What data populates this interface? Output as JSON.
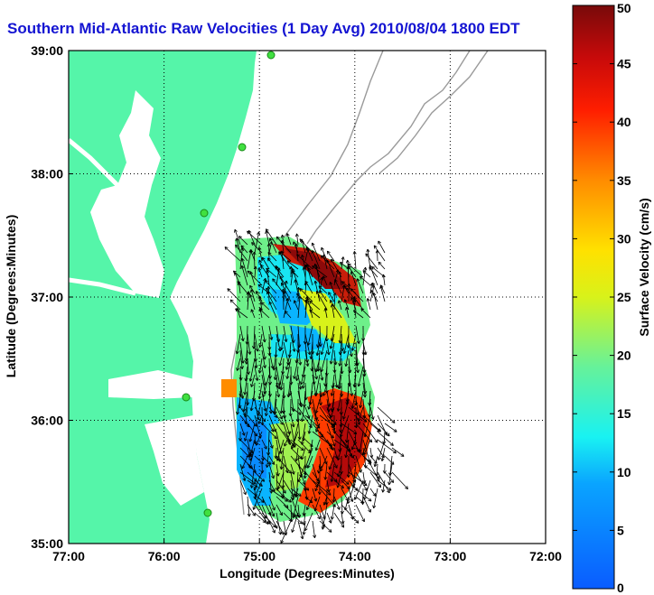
{
  "title": "Southern Mid-Atlantic Raw Velocities (1 Day Avg) 2010/08/04 1800 EDT",
  "map": {
    "xlabel": "Longitude (Degrees:Minutes)",
    "ylabel": "Latitude (Degrees:Minutes)",
    "lon_range": [
      -77,
      -72
    ],
    "lat_range": [
      35,
      39
    ],
    "x_ticks": [
      {
        "value": -77,
        "label": "77:00"
      },
      {
        "value": -76,
        "label": "76:00"
      },
      {
        "value": -75,
        "label": "75:00"
      },
      {
        "value": -74,
        "label": "74:00"
      },
      {
        "value": -73,
        "label": "73:00"
      },
      {
        "value": -72,
        "label": "72:00"
      }
    ],
    "y_ticks": [
      {
        "value": 35,
        "label": "35:00"
      },
      {
        "value": 36,
        "label": "36:00"
      },
      {
        "value": 37,
        "label": "37:00"
      },
      {
        "value": 38,
        "label": "38:00"
      },
      {
        "value": 39,
        "label": "39:00"
      }
    ],
    "grid": "dotted",
    "land_color": "#55f5a9",
    "station_color": "#40e040"
  },
  "colorbar": {
    "label": "Surface Velocity (cm/s)",
    "range": [
      0,
      50
    ],
    "ticks": [
      {
        "value": 0,
        "label": "0"
      },
      {
        "value": 5,
        "label": "5"
      },
      {
        "value": 10,
        "label": "10"
      },
      {
        "value": 15,
        "label": "15"
      },
      {
        "value": 20,
        "label": "20"
      },
      {
        "value": 25,
        "label": "25"
      },
      {
        "value": 30,
        "label": "30"
      },
      {
        "value": 35,
        "label": "35"
      },
      {
        "value": 40,
        "label": "40"
      },
      {
        "value": 45,
        "label": "45"
      },
      {
        "value": 50,
        "label": "50"
      }
    ]
  }
}
